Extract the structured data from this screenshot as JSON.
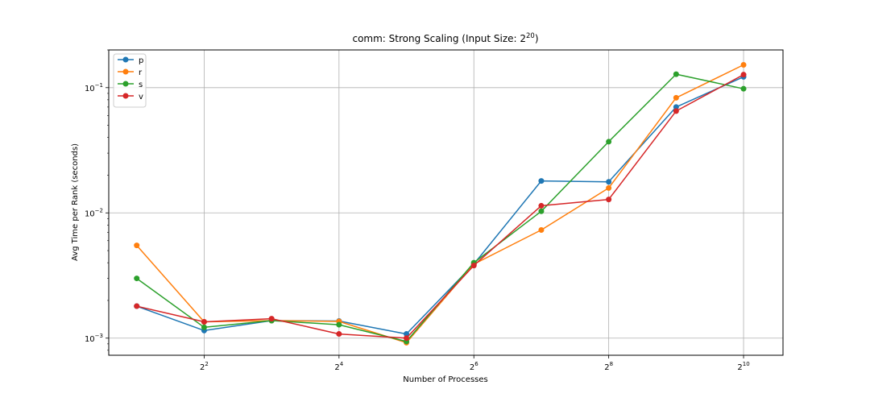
{
  "chart_data": {
    "type": "line",
    "title_prefix": "comm: Strong Scaling (Input Size: 2",
    "title_exp": "20",
    "title_suffix": ")",
    "xlabel": "Number of Processes",
    "ylabel": "Avg Time per Rank (seconds)",
    "x_scale": "log2",
    "y_scale": "log10",
    "xlim": [
      1.5,
      1536
    ],
    "ylim": [
      0.00073,
      0.2
    ],
    "grid": true,
    "legend_position": "top-left",
    "x_ticks": [
      {
        "value": 4,
        "base": "2",
        "exp": "2"
      },
      {
        "value": 16,
        "base": "2",
        "exp": "4"
      },
      {
        "value": 64,
        "base": "2",
        "exp": "6"
      },
      {
        "value": 256,
        "base": "2",
        "exp": "8"
      },
      {
        "value": 1024,
        "base": "2",
        "exp": "10"
      }
    ],
    "y_ticks": [
      {
        "value": 0.001,
        "base": "10",
        "exp": "−3"
      },
      {
        "value": 0.01,
        "base": "10",
        "exp": "−2"
      },
      {
        "value": 0.1,
        "base": "10",
        "exp": "−1"
      }
    ],
    "x": [
      2,
      4,
      8,
      16,
      32,
      64,
      128,
      256,
      512,
      1024
    ],
    "series": [
      {
        "name": "p",
        "color": "#1f77b4",
        "values": [
          0.0018,
          0.00115,
          0.00138,
          0.00137,
          0.00108,
          0.0039,
          0.018,
          0.0177,
          0.07,
          0.122
        ]
      },
      {
        "name": "r",
        "color": "#ff7f0e",
        "values": [
          0.0055,
          0.00135,
          0.00138,
          0.00136,
          0.00092,
          0.0039,
          0.0073,
          0.0158,
          0.083,
          0.152
        ]
      },
      {
        "name": "s",
        "color": "#2ca02c",
        "values": [
          0.003,
          0.00122,
          0.00138,
          0.00128,
          0.00094,
          0.004,
          0.0103,
          0.037,
          0.128,
          0.098
        ]
      },
      {
        "name": "v",
        "color": "#d62728",
        "values": [
          0.0018,
          0.00135,
          0.00143,
          0.00108,
          0.001,
          0.0038,
          0.0114,
          0.0128,
          0.065,
          0.127
        ]
      }
    ]
  }
}
